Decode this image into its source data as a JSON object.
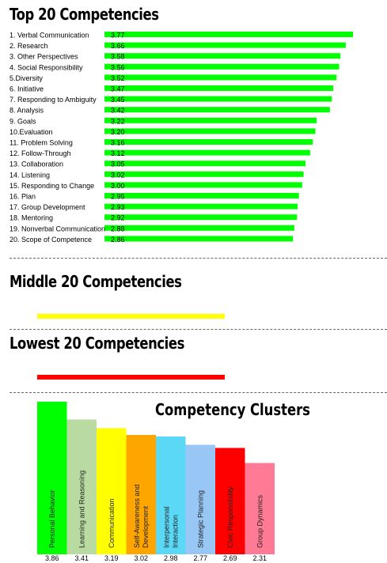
{
  "sections": {
    "top_title": "Top 20 Competencies",
    "middle_title": "Middle 20 Competencies",
    "lowest_title": "Lowest 20 Competencies",
    "middle_bar_color": "#ffff00",
    "lowest_bar_color": "#ff0000"
  },
  "chart_data": [
    {
      "type": "bar",
      "orientation": "horizontal",
      "title": "Top 20 Competencies",
      "color": "#00ff00",
      "categories": [
        "1. Verbal Communication",
        "2. Research",
        "3. Other Perspectives",
        "4. Social Responsibility",
        "5.Diversity",
        "6. Initiative",
        "7. Responding to Ambiguity",
        "8. Analysis",
        "9. Goals",
        "10.Evaluation",
        "11. Problem Solving",
        "12. Follow-Through",
        "13. Collaboration",
        "14. Listening",
        "15. Responding to Change",
        "16. Plan",
        "17. Group Development",
        "18. Mentoring",
        "19. Nonverbal Communication",
        "20. Scope of Competence"
      ],
      "values": [
        3.77,
        3.66,
        3.58,
        3.56,
        3.52,
        3.47,
        3.45,
        3.42,
        3.22,
        3.2,
        3.16,
        3.12,
        3.05,
        3.02,
        3.0,
        2.95,
        2.93,
        2.92,
        2.88,
        2.86
      ],
      "value_labels": [
        "3.77",
        "3.66",
        "3.58",
        "3.56",
        "3.52",
        "3.47",
        "3.45",
        "3.42",
        "3.22",
        "3.20",
        "3.16",
        "3.12",
        "3.05",
        "3.02",
        "3.00",
        "2.95",
        "2.93",
        "2.92",
        "2.88",
        "2.86"
      ]
    },
    {
      "type": "bar",
      "orientation": "vertical",
      "title": "Competency Clusters",
      "categories": [
        "Personal Behavior",
        "Learning and Reasoning",
        "Communication",
        "Self-Awareness and Development",
        "Interpersonal Interaction",
        "Strategic Planning",
        "Civic Responsibility",
        "Group Dynamics"
      ],
      "values": [
        3.86,
        3.41,
        3.19,
        3.02,
        2.98,
        2.77,
        2.69,
        2.31
      ],
      "value_labels": [
        "3.86",
        "3.41",
        "3.19",
        "3.02",
        "2.98",
        "2.77",
        "2.69",
        "2.31"
      ],
      "colors": [
        "#00ff00",
        "#b9dba1",
        "#ffff00",
        "#ffa500",
        "#5ad8f5",
        "#99c7f5",
        "#ff0000",
        "#ff7a95"
      ]
    }
  ]
}
